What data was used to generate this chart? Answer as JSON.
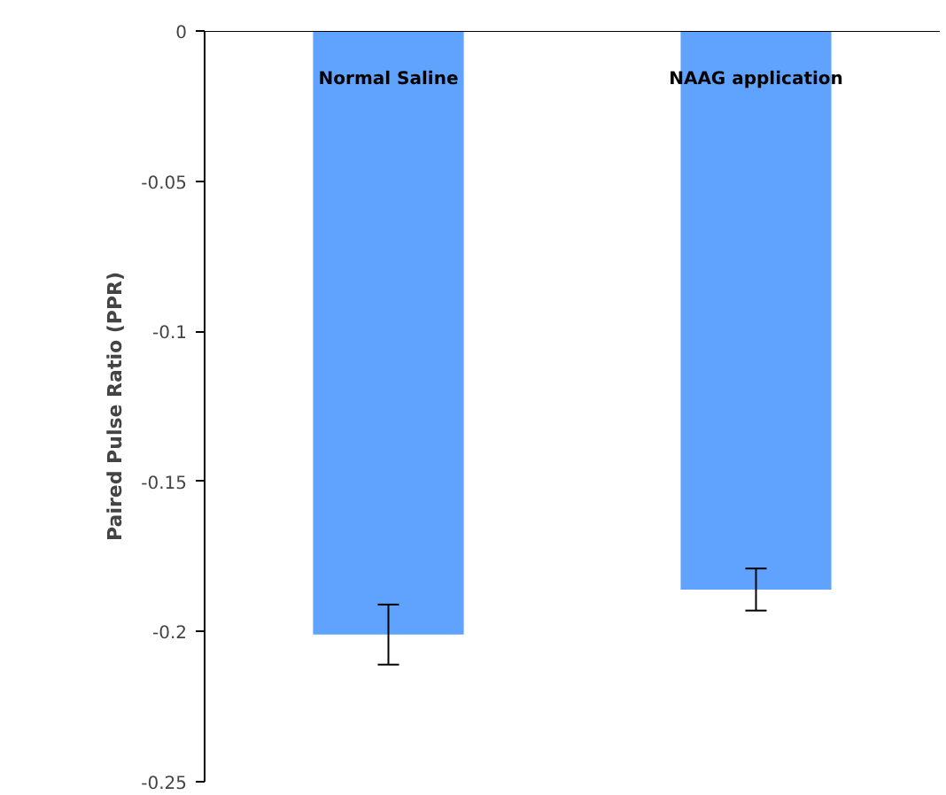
{
  "chart_data": {
    "type": "bar",
    "ylabel": "Paired Pulse Ratio (PPR)",
    "categories": [
      "Normal Saline",
      "NAAG application"
    ],
    "values": [
      -0.201,
      -0.186
    ],
    "errors": [
      0.01,
      0.007
    ],
    "color": "#5fa3ff",
    "ylim": [
      -0.25,
      0
    ],
    "yticks": [
      -0.25,
      -0.2,
      -0.15,
      -0.1,
      -0.05,
      0
    ],
    "grid": false
  }
}
